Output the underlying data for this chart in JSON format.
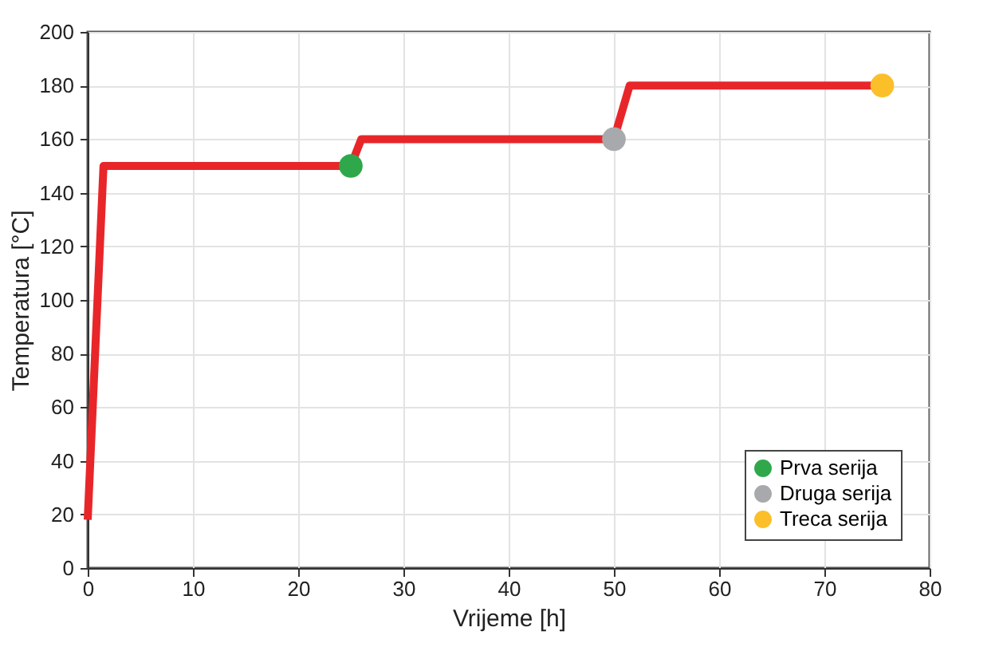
{
  "chart_data": {
    "type": "line",
    "xlabel": "Vrijeme [h]",
    "ylabel": "Temperatura [°C]",
    "xlim": [
      0,
      80
    ],
    "ylim": [
      0,
      200
    ],
    "xticks": [
      0,
      10,
      20,
      30,
      40,
      50,
      60,
      70,
      80
    ],
    "yticks": [
      0,
      20,
      40,
      60,
      80,
      100,
      120,
      140,
      160,
      180,
      200
    ],
    "grid": true,
    "legend": "bottom right",
    "line_style": "solid",
    "series": [
      {
        "color": "#e8262a",
        "x": [
          0,
          1.5,
          25,
          26,
          50,
          51.5,
          75.5
        ],
        "values": [
          18,
          150,
          150,
          160,
          160,
          180,
          180
        ]
      },
      {
        "type": "scatter",
        "name": "Prva serija",
        "color": "#2ea84a",
        "x": [
          25
        ],
        "values": [
          150
        ]
      },
      {
        "type": "scatter",
        "name": "Druga serija",
        "color": "#a7a9ac",
        "x": [
          50
        ],
        "values": [
          160
        ]
      },
      {
        "type": "scatter",
        "name": "Treca serija",
        "color": "#fbbf2a",
        "x": [
          75.5
        ],
        "values": [
          180
        ]
      }
    ]
  }
}
